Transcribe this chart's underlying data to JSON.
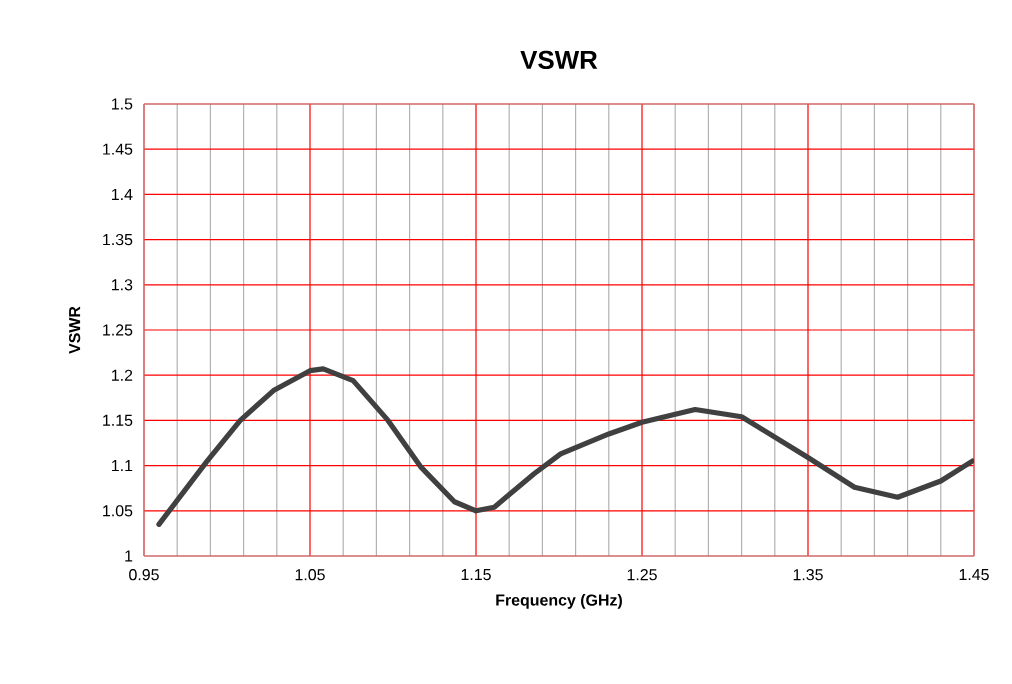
{
  "chart_data": {
    "type": "line",
    "title": "VSWR",
    "xlabel": "Frequency (GHz)",
    "ylabel": "VSWR",
    "x": [
      0.959,
      0.988,
      1.008,
      1.028,
      1.05,
      1.058,
      1.076,
      1.097,
      1.117,
      1.137,
      1.15,
      1.161,
      1.185,
      1.201,
      1.23,
      1.25,
      1.282,
      1.31,
      1.35,
      1.378,
      1.404,
      1.43,
      1.449
    ],
    "series": [
      {
        "color": "#404040",
        "values": [
          1.035,
          1.105,
          1.15,
          1.183,
          1.205,
          1.207,
          1.194,
          1.15,
          1.098,
          1.06,
          1.05,
          1.054,
          1.091,
          1.113,
          1.135,
          1.148,
          1.162,
          1.154,
          1.109,
          1.076,
          1.065,
          1.083,
          1.105
        ]
      }
    ],
    "xlim": [
      0.95,
      1.45
    ],
    "ylim": [
      1,
      1.5
    ],
    "xticks": [
      0.95,
      1.05,
      1.15,
      1.25,
      1.35,
      1.45
    ],
    "yticks": [
      1,
      1.05,
      1.1,
      1.15,
      1.2,
      1.25,
      1.3,
      1.35,
      1.4,
      1.45,
      1.5
    ],
    "grid": true,
    "marker": "none",
    "line_style": "solid"
  }
}
